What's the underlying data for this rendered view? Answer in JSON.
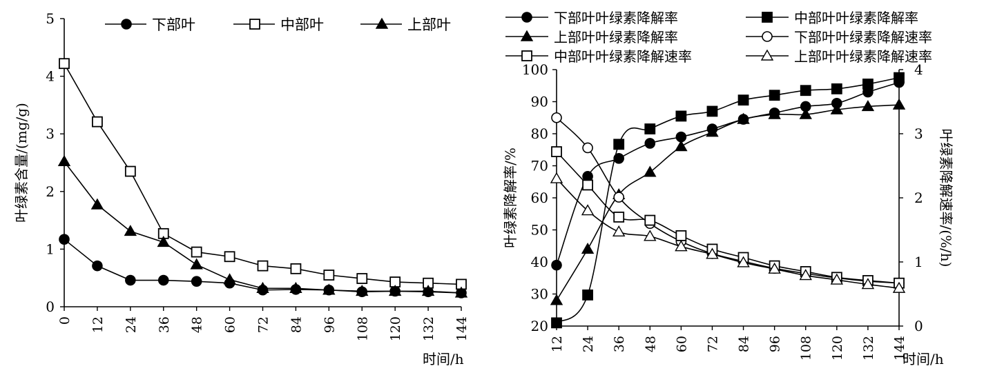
{
  "chart_data": [
    {
      "type": "line",
      "x": [
        0,
        12,
        24,
        36,
        48,
        60,
        72,
        84,
        96,
        108,
        120,
        132,
        144
      ],
      "series": [
        {
          "name": "下部叶",
          "marker": "filled-circle",
          "values": [
            1.17,
            0.71,
            0.46,
            0.46,
            0.44,
            0.41,
            0.29,
            0.3,
            0.29,
            0.26,
            0.27,
            0.26,
            0.24
          ]
        },
        {
          "name": "中部叶",
          "marker": "open-square",
          "values": [
            4.22,
            3.21,
            2.35,
            1.27,
            0.95,
            0.87,
            0.71,
            0.66,
            0.55,
            0.49,
            0.43,
            0.41,
            0.39
          ]
        },
        {
          "name": "上部叶",
          "marker": "filled-triangle",
          "values": [
            2.52,
            1.77,
            1.31,
            1.12,
            0.73,
            0.47,
            0.32,
            0.32,
            0.29,
            0.27,
            0.27,
            0.27,
            0.24
          ]
        }
      ],
      "xlabel": "时间/h",
      "ylabel": "叶绿素含量/(mg/g)",
      "ylim": [
        0,
        5
      ],
      "yticks": [
        0,
        1,
        2,
        3,
        4,
        5
      ],
      "xticks": [
        "0",
        "12",
        "24",
        "36",
        "48",
        "60",
        "72",
        "84",
        "96",
        "108",
        "120",
        "132",
        "144"
      ],
      "grid": false,
      "legend": "top"
    },
    {
      "type": "line",
      "x": [
        12,
        24,
        36,
        48,
        60,
        72,
        84,
        96,
        108,
        120,
        132,
        144
      ],
      "series": [
        {
          "name": "下部叶叶绿素降解率",
          "axis": "left",
          "marker": "filled-circle",
          "values": [
            39,
            66.7,
            72.3,
            77,
            79,
            81.5,
            84.5,
            86.5,
            88.5,
            89.5,
            93,
            96
          ]
        },
        {
          "name": "中部叶叶绿素降解率",
          "axis": "left",
          "marker": "filled-square",
          "values": [
            21,
            29.7,
            76.7,
            81.5,
            85.5,
            87,
            90.5,
            92,
            93.5,
            94,
            95.5,
            97.5
          ]
        },
        {
          "name": "上部叶叶绿素降解率",
          "axis": "left",
          "marker": "filled-triangle",
          "values": [
            28,
            44,
            61,
            68,
            76,
            80.5,
            84.5,
            86,
            86,
            87.5,
            88.5,
            89
          ]
        },
        {
          "name": "下部叶叶绿素降解速率",
          "axis": "right",
          "marker": "open-circle",
          "values": [
            3.25,
            2.78,
            2.01,
            1.6,
            1.32,
            1.13,
            1.01,
            0.9,
            0.82,
            0.75,
            0.7,
            0.67
          ]
        },
        {
          "name": "中部叶叶绿素降解速率",
          "axis": "right",
          "marker": "open-square",
          "values": [
            2.72,
            2.2,
            1.7,
            1.65,
            1.41,
            1.2,
            1.07,
            0.94,
            0.85,
            0.76,
            0.71,
            0.67
          ]
        },
        {
          "name": "上部叶叶绿素降解速率",
          "axis": "right",
          "marker": "open-triangle",
          "values": [
            2.3,
            1.8,
            1.47,
            1.4,
            1.24,
            1.12,
            0.99,
            0.89,
            0.79,
            0.72,
            0.65,
            0.59
          ]
        }
      ],
      "xlabel": "时间/h",
      "ylabel": "叶绿素降解率/%",
      "y2label": "叶绿素降解速率/(%/h)",
      "ylim": [
        20,
        100
      ],
      "y2lim": [
        0,
        4
      ],
      "yticks": [
        20,
        30,
        40,
        50,
        60,
        70,
        80,
        90,
        100
      ],
      "y2ticks": [
        0,
        1,
        2,
        3,
        4
      ],
      "xticks": [
        "12",
        "24",
        "36",
        "48",
        "60",
        "72",
        "84",
        "96",
        "108",
        "120",
        "132",
        "144"
      ],
      "grid": false,
      "legend": "top"
    }
  ]
}
